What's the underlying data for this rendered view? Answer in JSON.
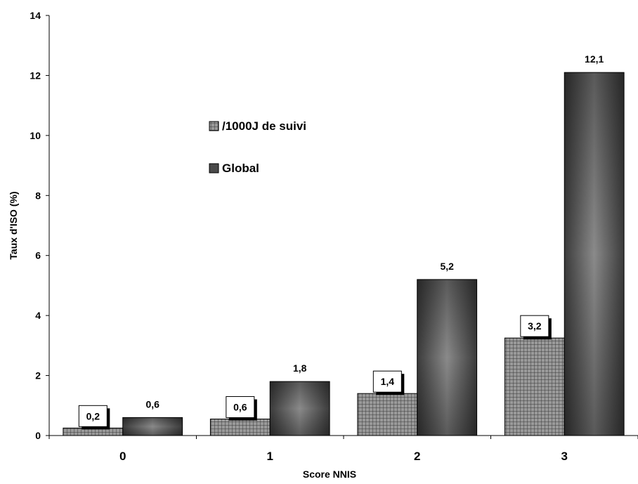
{
  "chart_data": {
    "type": "bar",
    "title": "",
    "xlabel": "Score NNIS",
    "ylabel": "Taux d'ISO (%)",
    "categories": [
      "0",
      "1",
      "2",
      "3"
    ],
    "ylim": [
      0,
      14
    ],
    "yticks": [
      "0",
      "2",
      "4",
      "6",
      "8",
      "10",
      "12",
      "14"
    ],
    "grid": false,
    "legend_position": "upper-left inside plot",
    "series": [
      {
        "name": "/1000J de suivi",
        "values": [
          0.25,
          0.55,
          1.4,
          3.25
        ],
        "labels": [
          "0,2",
          "0,6",
          "1,4",
          "3,2"
        ],
        "fill": "checkered",
        "color": "#707070"
      },
      {
        "name": "Global",
        "values": [
          0.6,
          1.8,
          5.2,
          12.1
        ],
        "labels": [
          "0,6",
          "1,8",
          "5,2",
          "12,1"
        ],
        "fill": "gradient",
        "color": "#4a4a4a"
      }
    ]
  }
}
